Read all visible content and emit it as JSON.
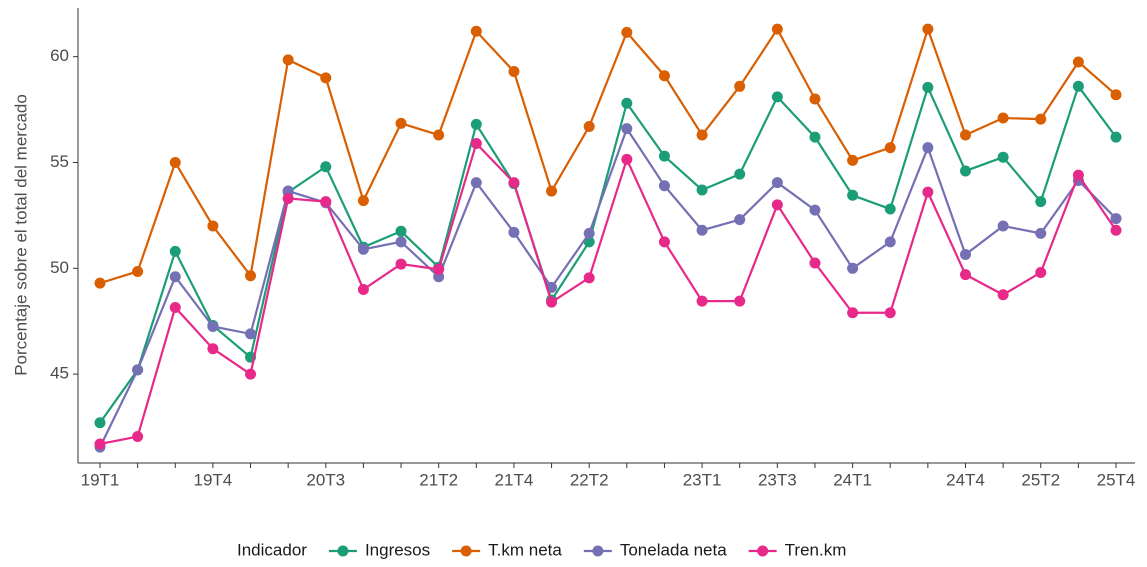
{
  "chart_data": {
    "type": "line",
    "y_label": "Porcentaje sobre el total del mercado",
    "legend_title": "Indicador",
    "legend_position": "bottom",
    "grid": false,
    "categories": [
      "19T1",
      null,
      null,
      "19T4",
      null,
      null,
      "20T3",
      null,
      null,
      "21T2",
      null,
      "21T4",
      null,
      "22T2",
      null,
      null,
      "23T1",
      null,
      "23T3",
      null,
      "24T1",
      null,
      null,
      "24T4",
      null,
      "25T2",
      null,
      "25T4"
    ],
    "ylim": [
      40.8,
      62.3
    ],
    "yticks": [
      45,
      50,
      55,
      60
    ],
    "series": [
      {
        "name": "Ingresos",
        "color": "#1b9e77",
        "values": [
          42.7,
          45.2,
          50.8,
          47.3,
          45.8,
          53.6,
          54.8,
          51.0,
          51.75,
          50.05,
          56.8,
          54.0,
          48.5,
          51.25,
          57.8,
          55.3,
          53.7,
          54.45,
          58.1,
          56.2,
          53.45,
          52.8,
          58.55,
          54.6,
          55.25,
          53.15,
          58.6,
          56.2
        ]
      },
      {
        "name": "T.km neta",
        "color": "#d95f02",
        "values": [
          49.3,
          49.85,
          55.0,
          52.0,
          49.65,
          59.85,
          59.0,
          53.2,
          56.85,
          56.3,
          61.2,
          59.3,
          53.65,
          56.7,
          61.15,
          59.1,
          56.3,
          58.6,
          61.3,
          58.0,
          55.1,
          55.7,
          61.3,
          56.3,
          57.1,
          57.05,
          59.75,
          58.2
        ]
      },
      {
        "name": "Tonelada neta",
        "color": "#7570b3",
        "values": [
          41.55,
          45.2,
          49.6,
          47.25,
          46.9,
          53.65,
          53.1,
          50.9,
          51.25,
          49.6,
          54.05,
          51.7,
          49.1,
          51.65,
          56.6,
          53.9,
          51.8,
          52.3,
          54.05,
          52.75,
          50.0,
          51.25,
          55.7,
          50.65,
          52.0,
          51.65,
          54.15,
          52.35
        ]
      },
      {
        "name": "Tren.km",
        "color": "#e7298a",
        "values": [
          41.7,
          42.05,
          48.15,
          46.2,
          45.0,
          53.3,
          53.15,
          49.0,
          50.2,
          49.95,
          55.9,
          54.05,
          48.4,
          49.55,
          55.15,
          51.25,
          48.45,
          48.45,
          53.0,
          50.25,
          47.9,
          47.9,
          53.6,
          49.7,
          48.75,
          49.8,
          54.4,
          51.8
        ]
      }
    ]
  }
}
